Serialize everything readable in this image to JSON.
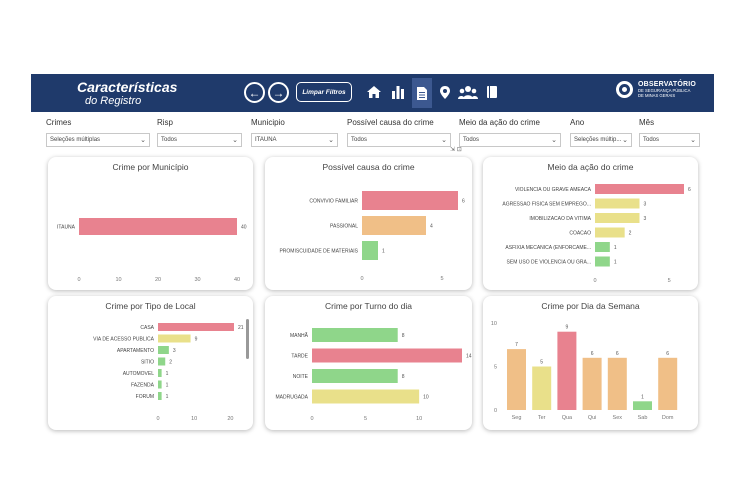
{
  "header": {
    "title_line1": "Características",
    "title_line2": "do Registro",
    "back_label": "←",
    "forward_label": "→",
    "clear_filters_label": "Limpar Filtros",
    "logo_line1": "OBSERVATÓRIO",
    "logo_line2": "DE SEGURANÇA PÚBLICA",
    "logo_line3": "DE MINAS GERAIS",
    "icons": [
      "home-icon",
      "bar-chart-icon",
      "document-icon",
      "map-pin-icon",
      "people-icon",
      "book-icon"
    ]
  },
  "filters": [
    {
      "label": "Crimes",
      "value": "Seleções múltiplas"
    },
    {
      "label": "Risp",
      "value": "Todos"
    },
    {
      "label": "Municipio",
      "value": "ITAUNA"
    },
    {
      "label": "Possível causa do crime",
      "value": "Todos"
    },
    {
      "label": "Meio da ação do crime",
      "value": "Todos"
    },
    {
      "label": "Ano",
      "value": "Seleções múltip..."
    },
    {
      "label": "Mês",
      "value": "Todos"
    }
  ],
  "colors": {
    "header_bg": "#1f3a6b",
    "red": "#e8828f",
    "yellow": "#e9e08a",
    "orange": "#f0bf87",
    "green": "#8fd68a"
  },
  "chart_data": [
    {
      "type": "bar",
      "orientation": "horizontal",
      "title": "Crime por Município",
      "categories": [
        "ITAUNA"
      ],
      "values": [
        40
      ],
      "colors": [
        "red"
      ],
      "xticks": [
        "0",
        "10",
        "20",
        "30",
        "40"
      ],
      "xlim": [
        0,
        40
      ]
    },
    {
      "type": "bar",
      "orientation": "horizontal",
      "title": "Possível causa do crime",
      "categories": [
        "CONVIVIO FAMILIAR",
        "PASSIONAL",
        "PROMISCUIDADE DE MATERIAIS"
      ],
      "values": [
        6,
        4,
        1
      ],
      "colors": [
        "red",
        "orange",
        "green"
      ],
      "xticks": [
        "0",
        "5"
      ],
      "xlim": [
        0,
        6
      ]
    },
    {
      "type": "bar",
      "orientation": "horizontal",
      "title": "Meio da ação do crime",
      "categories": [
        "VIOLENCIA OU GRAVE AMEACA",
        "AGRESSAO FISICA SEM EMPREGO...",
        "IMOBILIZACAO DA VITIMA",
        "COACAO",
        "ASFIXIA MECANICA (ENFORCAME...",
        "SEM USO DE VIOLENCIA OU GRA..."
      ],
      "values": [
        6,
        3,
        3,
        2,
        1,
        1
      ],
      "colors": [
        "red",
        "yellow",
        "yellow",
        "yellow",
        "green",
        "green"
      ],
      "xticks": [
        "0",
        "5"
      ],
      "xlim": [
        0,
        6
      ]
    },
    {
      "type": "bar",
      "orientation": "horizontal",
      "title": "Crime por Tipo de Local",
      "categories": [
        "CASA",
        "VIA DE ACESSO PUBLICA",
        "APARTAMENTO",
        "SITIO",
        "AUTOMOVEL",
        "FAZENDA",
        "FORUM"
      ],
      "values": [
        21,
        9,
        3,
        2,
        1,
        1,
        1
      ],
      "colors": [
        "red",
        "yellow",
        "green",
        "green",
        "green",
        "green",
        "green"
      ],
      "xticks": [
        "0",
        "10",
        "20"
      ],
      "xlim": [
        0,
        21
      ]
    },
    {
      "type": "bar",
      "orientation": "horizontal",
      "title": "Crime por Turno do dia",
      "categories": [
        "MANHÃ",
        "TARDE",
        "NOITE",
        "MADRUGADA"
      ],
      "values": [
        8,
        14,
        8,
        10
      ],
      "colors": [
        "green",
        "red",
        "green",
        "yellow"
      ],
      "xticks": [
        "0",
        "5",
        "10"
      ],
      "xlim": [
        0,
        14
      ]
    },
    {
      "type": "bar",
      "orientation": "vertical",
      "title": "Crime por Dia da Semana",
      "categories": [
        "Seg",
        "Ter",
        "Qua",
        "Qui",
        "Sex",
        "Sab",
        "Dom"
      ],
      "values": [
        7,
        5,
        9,
        6,
        6,
        1,
        6
      ],
      "colors": [
        "orange",
        "yellow",
        "red",
        "orange",
        "orange",
        "green",
        "orange"
      ],
      "yticks": [
        "0",
        "5",
        "10"
      ],
      "ylim": [
        0,
        10
      ]
    }
  ]
}
